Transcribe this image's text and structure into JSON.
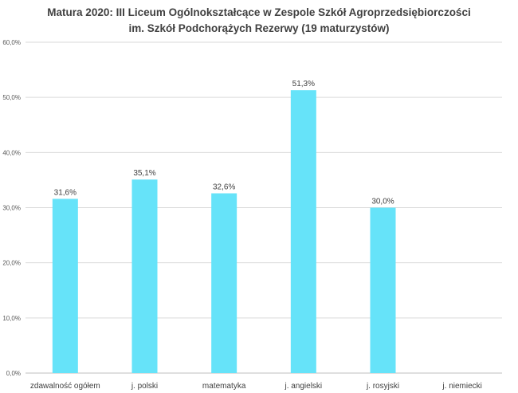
{
  "chart_data": {
    "type": "bar",
    "title_line1": "Matura 2020: III Liceum Ogólnokształcące w Zespole Szkół Agroprzedsiębiorczości",
    "title_line2": "im. Szkół Podchorążych Rezerwy (19 maturzystów)",
    "categories": [
      "zdawalność ogółem",
      "j. polski",
      "matematyka",
      "j. angielski",
      "j. rosyjski",
      "j. niemiecki"
    ],
    "values": [
      31.6,
      35.1,
      32.6,
      51.3,
      30.0,
      null
    ],
    "data_labels": [
      "31,6%",
      "35,1%",
      "32,6%",
      "51,3%",
      "30,0%",
      ""
    ],
    "ylim": [
      0,
      60
    ],
    "yticks": [
      0,
      10,
      20,
      30,
      40,
      50,
      60
    ],
    "ytick_labels": [
      "0,0%",
      "10,0%",
      "20,0%",
      "30,0%",
      "40,0%",
      "50,0%",
      "60,0%"
    ],
    "grid": true,
    "bar_color": "#66E3F9",
    "grid_color": "#d9d9d9"
  }
}
